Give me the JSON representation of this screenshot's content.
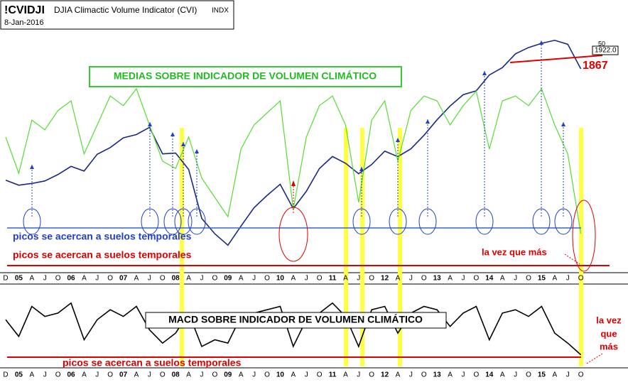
{
  "header": {
    "symbol": "!CVIDJI",
    "name": "DJIA Climactic Volume Indicator (CVI)",
    "exchange": "INDX",
    "date": "8-Jan-2016"
  },
  "chart_data": [
    {
      "type": "line",
      "categories": [
        "D",
        "05",
        "A",
        "J",
        "O",
        "06",
        "A",
        "J",
        "O",
        "07",
        "A",
        "J",
        "O",
        "08",
        "A",
        "J",
        "O",
        "09",
        "A",
        "J",
        "O",
        "10",
        "A",
        "J",
        "O",
        "11",
        "A",
        "J",
        "O",
        "12",
        "A",
        "J",
        "O",
        "13",
        "A",
        "J",
        "O",
        "14",
        "A",
        "J",
        "O",
        "15",
        "A",
        "J",
        "O"
      ],
      "series": [
        {
          "color": "#1a2a80",
          "values": [
            1212,
            1180,
            1191,
            1207,
            1248,
            1300,
            1270,
            1377,
            1420,
            1482,
            1503,
            1549,
            1380,
            1385,
            1280,
            968,
            870,
            797,
            919,
            1036,
            1115,
            1186,
            1030,
            1141,
            1286,
            1363,
            1320,
            1253,
            1312,
            1397,
            1362,
            1412,
            1498,
            1597,
            1685,
            1757,
            1782,
            1883,
            1930,
            2018,
            2058,
            2085,
            2104,
            2079,
            1922
          ]
        },
        {
          "color": "#55dd33",
          "axis": "y2",
          "values": [
            55,
            40,
            62,
            58,
            66,
            70,
            48,
            60,
            72,
            68,
            75,
            60,
            45,
            42,
            55,
            38,
            30,
            22,
            50,
            60,
            65,
            70,
            25,
            55,
            68,
            72,
            60,
            28,
            62,
            70,
            45,
            66,
            72,
            70,
            60,
            68,
            74,
            50,
            70,
            72,
            68,
            75,
            60,
            48,
            15
          ]
        }
      ],
      "ylim": [
        640,
        2180
      ],
      "y2lim": [
        0,
        100
      ],
      "annotations": {
        "title_box": "MEDIAS SOBRE INDICADOR DE VOLUMEN CLIMÁTICO",
        "blue_note": "picos se acercan a suelos temporales",
        "red_note": "picos se acercan a suelos temporales",
        "most": "la vez que más",
        "support": "1867",
        "ma": "50",
        "last": "1922.0"
      }
    },
    {
      "type": "line",
      "categories": [
        "D",
        "05",
        "A",
        "J",
        "O",
        "06",
        "A",
        "J",
        "O",
        "07",
        "A",
        "J",
        "O",
        "08",
        "A",
        "J",
        "O",
        "09",
        "A",
        "J",
        "O",
        "10",
        "A",
        "J",
        "O",
        "11",
        "A",
        "J",
        "O",
        "12",
        "A",
        "J",
        "O",
        "13",
        "A",
        "J",
        "O",
        "14",
        "A",
        "J",
        "O",
        "15",
        "A",
        "J",
        "O"
      ],
      "series": [
        {
          "color": "#000000",
          "values": [
            0.1,
            -0.4,
            0.5,
            0.2,
            0.3,
            0.6,
            -0.5,
            0.1,
            0.4,
            0.2,
            0.5,
            -0.2,
            -0.6,
            -0.3,
            0.3,
            -0.7,
            -0.5,
            -0.6,
            0.2,
            0.3,
            0.4,
            0.5,
            -0.7,
            0.1,
            0.3,
            0.6,
            0.2,
            -0.7,
            0.4,
            0.5,
            -0.3,
            0.3,
            0.5,
            0.4,
            -0.1,
            0.3,
            0.5,
            -0.5,
            0.3,
            0.4,
            0.2,
            0.5,
            -0.3,
            -0.6,
            -0.95
          ]
        }
      ],
      "ylim": [
        -1,
        1
      ],
      "annotations": {
        "title_box": "MACD SOBRE INDICADOR DE VOLUMEN CLIMÁTICO",
        "red_note": "picos se acercan a suelos temporales",
        "most_1": "la vez",
        "most_2": "que",
        "most_3": "más"
      }
    }
  ]
}
